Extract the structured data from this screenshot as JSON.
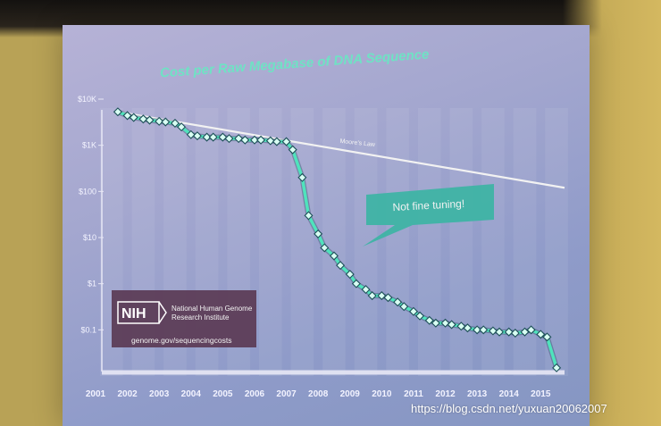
{
  "chart_data": {
    "type": "line",
    "title": "Cost per Raw Megabase of DNA Sequence",
    "xlabel": "",
    "ylabel": "",
    "y_scale": "log",
    "xlim": [
      2001,
      2015.75
    ],
    "ylim": [
      0.01,
      10000
    ],
    "grid": "vertical bands",
    "y_ticks": [
      "$10K",
      "$1K",
      "$100",
      "$10",
      "$1",
      "$0.1"
    ],
    "x_ticks": [
      "2001",
      "2002",
      "2003",
      "2004",
      "2005",
      "2006",
      "2007",
      "2008",
      "2009",
      "2010",
      "2011",
      "2012",
      "2013",
      "2014",
      "2015"
    ],
    "series": [
      {
        "x": [
          2001.7,
          2002.0,
          2002.2,
          2002.5,
          2002.7,
          2003.0,
          2003.2,
          2003.5,
          2003.7,
          2004.0,
          2004.2,
          2004.5,
          2004.7,
          2005.0,
          2005.2,
          2005.5,
          2005.7,
          2006.0,
          2006.2,
          2006.5,
          2006.7,
          2007.0,
          2007.2,
          2007.5,
          2007.7,
          2008.0,
          2008.2,
          2008.5,
          2008.7,
          2009.0,
          2009.2,
          2009.5,
          2009.7,
          2010.0,
          2010.2,
          2010.5,
          2010.7,
          2011.0,
          2011.2,
          2011.5,
          2011.7,
          2012.0,
          2012.2,
          2012.5,
          2012.7,
          2013.0,
          2013.2,
          2013.5,
          2013.7,
          2014.0,
          2014.2,
          2014.5,
          2014.7,
          2015.0,
          2015.2,
          2015.5
        ],
        "values": [
          5300,
          4400,
          4000,
          3700,
          3500,
          3300,
          3200,
          3000,
          2500,
          1700,
          1600,
          1500,
          1500,
          1500,
          1400,
          1400,
          1300,
          1300,
          1300,
          1250,
          1200,
          1200,
          800,
          200,
          30,
          12,
          6,
          4,
          2.5,
          1.6,
          1.0,
          0.75,
          0.55,
          0.55,
          0.5,
          0.4,
          0.32,
          0.25,
          0.2,
          0.16,
          0.14,
          0.14,
          0.13,
          0.12,
          0.11,
          0.1,
          0.1,
          0.095,
          0.09,
          0.09,
          0.085,
          0.09,
          0.1,
          0.08,
          0.07,
          0.015
        ]
      },
      {
        "name": "Moore's Law",
        "x": [
          2001.7,
          2015.75
        ],
        "values": [
          5300,
          120
        ]
      }
    ],
    "annotations": [
      "Not fine tuning!"
    ]
  },
  "logo": {
    "abbr": "NIH",
    "name_line1": "National Human Genome",
    "name_line2": "Research Institute",
    "url": "genome.gov/sequencingcosts"
  },
  "watermark": "https://blog.csdn.net/yuxuan20062007",
  "colors": {
    "main_series": "#4fe3bc",
    "moore_line": "#f2f2f2",
    "title": "#6fe2c4",
    "callout": "#3fb7a7",
    "logo_bg": "#5b3a55"
  }
}
